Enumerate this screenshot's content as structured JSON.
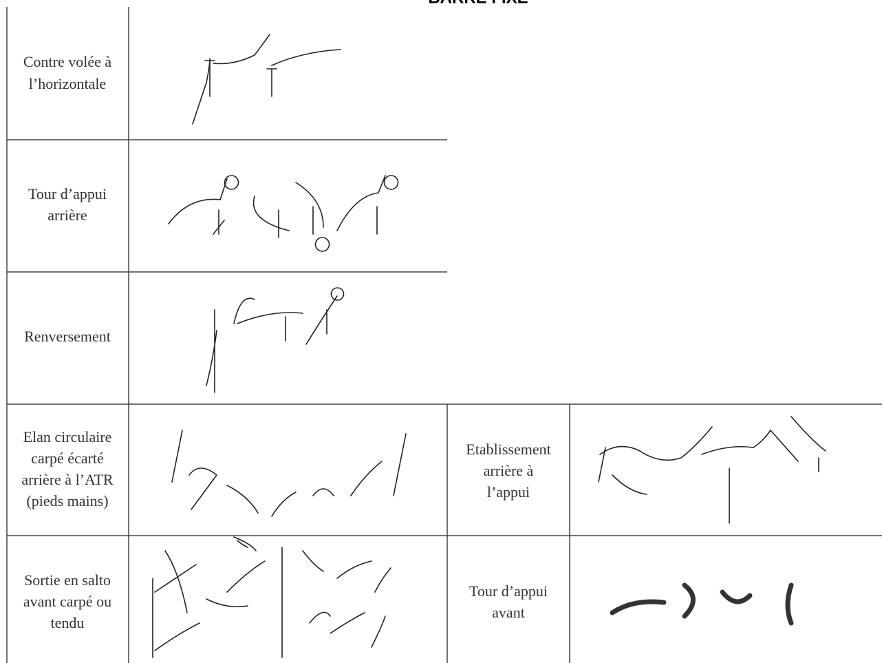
{
  "title": "BARRE FIXE",
  "table": {
    "rows": [
      {
        "label": [
          "Contre volée à",
          "l’horizontale"
        ]
      },
      {
        "label": [
          "Tour d’appui",
          "arrière"
        ]
      },
      {
        "label": [
          "Renversement"
        ]
      },
      {
        "label": [
          "Elan circulaire",
          "carpé écarté",
          "arrière à l’ATR",
          "(pieds mains)"
        ],
        "label2": [
          "Etablissement",
          "arrière à",
          "l’appui"
        ]
      },
      {
        "label": [
          "Sortie en salto",
          "avant carpé ou",
          "tendu"
        ],
        "label2": [
          "Tour d’appui",
          "avant"
        ]
      }
    ]
  }
}
